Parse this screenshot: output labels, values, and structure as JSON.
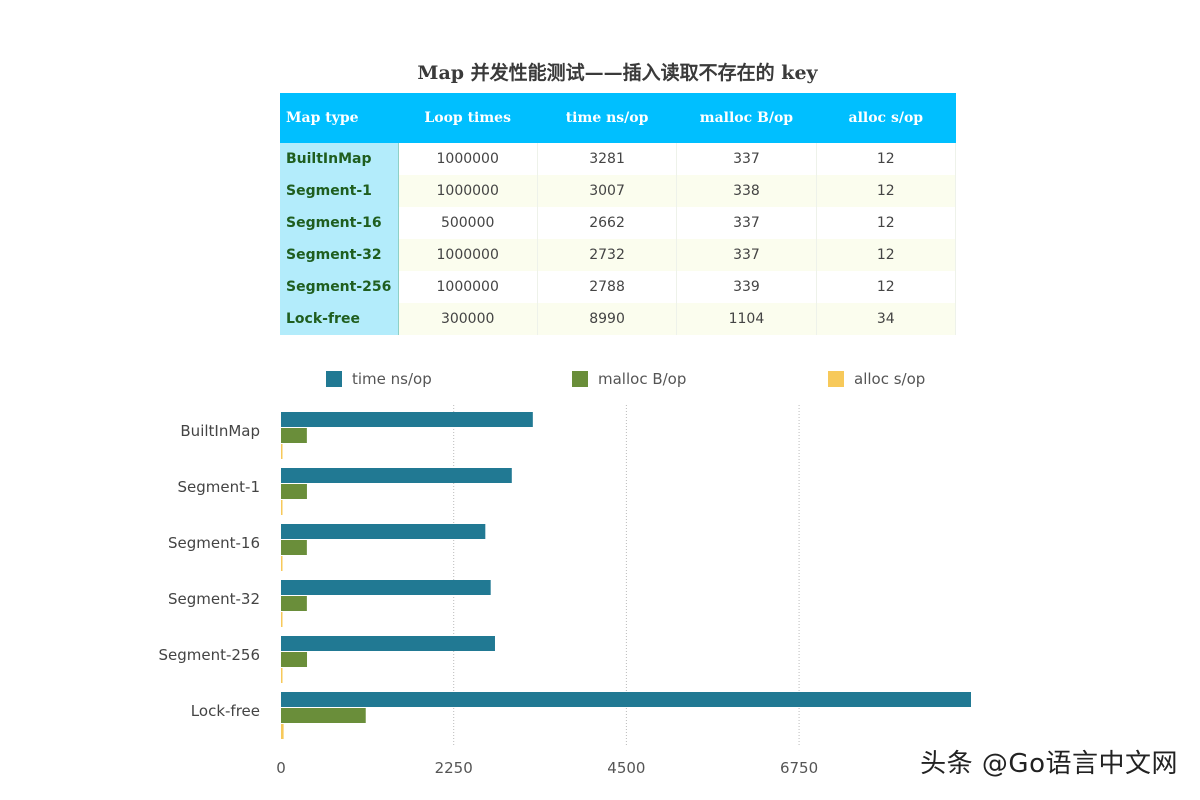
{
  "title": "Map 并发性能测试——插入读取不存在的 key",
  "table": {
    "headers": [
      "Map type",
      "Loop times",
      "time ns/op",
      "malloc B/op",
      "alloc s/op"
    ],
    "rows": [
      [
        "BuiltInMap",
        "1000000",
        "3281",
        "337",
        "12"
      ],
      [
        "Segment-1",
        "1000000",
        "3007",
        "338",
        "12"
      ],
      [
        "Segment-16",
        "500000",
        "2662",
        "337",
        "12"
      ],
      [
        "Segment-32",
        "1000000",
        "2732",
        "337",
        "12"
      ],
      [
        "Segment-256",
        "1000000",
        "2788",
        "339",
        "12"
      ],
      [
        "Lock-free",
        "300000",
        "8990",
        "1104",
        "34"
      ]
    ]
  },
  "colors": {
    "time": "#217993",
    "malloc": "#6a8e3a",
    "alloc": "#f7c95a",
    "header": "#00bfff",
    "name_cell": "#b3ecfb"
  },
  "chart_data": {
    "type": "bar",
    "orientation": "horizontal",
    "categories": [
      "BuiltInMap",
      "Segment-1",
      "Segment-16",
      "Segment-32",
      "Segment-256",
      "Lock-free"
    ],
    "series": [
      {
        "name": "time ns/op",
        "values": [
          3281,
          3007,
          2662,
          2732,
          2788,
          8990
        ]
      },
      {
        "name": "malloc B/op",
        "values": [
          337,
          338,
          337,
          337,
          339,
          1104
        ]
      },
      {
        "name": "alloc s/op",
        "values": [
          12,
          12,
          12,
          12,
          12,
          34
        ]
      }
    ],
    "xlim": [
      0,
      9000
    ],
    "xticks": [
      0,
      2250,
      4500,
      6750
    ],
    "grid": "vertical dotted",
    "legend": "top"
  },
  "watermark": "头条 @Go语言中文网"
}
